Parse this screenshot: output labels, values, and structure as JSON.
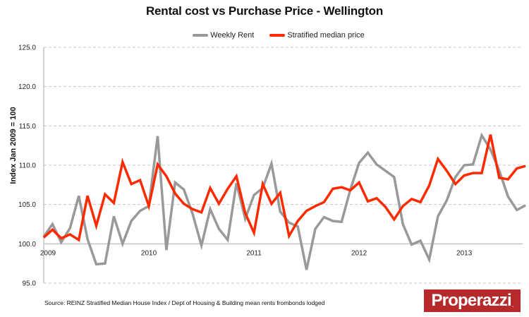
{
  "chart_data": {
    "type": "line",
    "title": "Rental cost vs Purchase Price - Wellington",
    "xlabel": "",
    "ylabel": "Index Jan 2009 = 100",
    "ylim": [
      95,
      125
    ],
    "yticks": [
      "95.0",
      "100.0",
      "105.0",
      "110.0",
      "115.0",
      "120.0",
      "125.0"
    ],
    "ytick_values": [
      95,
      100,
      105,
      110,
      115,
      120,
      125
    ],
    "xtick_labels": [
      "2009",
      "2010",
      "2011",
      "2012",
      "2013"
    ],
    "xtick_month_index": [
      0,
      12,
      24,
      36,
      48
    ],
    "x_unit": "month index from Jan 2009",
    "grid": "horizontal dashed",
    "legend_position": "top-center",
    "series": [
      {
        "name": "Weekly Rent",
        "color": "#999999",
        "values": [
          100.9,
          102.5,
          100.2,
          102.0,
          106.1,
          100.6,
          97.4,
          97.5,
          103.5,
          100.0,
          102.9,
          104.2,
          104.8,
          113.7,
          99.2,
          107.8,
          106.9,
          103.8,
          99.8,
          104.4,
          101.9,
          100.5,
          107.7,
          103.2,
          106.2,
          107.1,
          110.2,
          104.1,
          102.7,
          102.2,
          96.7,
          101.9,
          103.4,
          102.9,
          102.8,
          106.9,
          110.3,
          111.6,
          110.1,
          109.3,
          108.5,
          102.5,
          99.9,
          100.4,
          98.0,
          103.5,
          105.5,
          108.5,
          110.0,
          110.1,
          113.8,
          112.0,
          109.3,
          106.0,
          104.3,
          104.9
        ]
      },
      {
        "name": "Stratified median price",
        "color": "#ff2a00",
        "values": [
          100.8,
          101.8,
          100.7,
          101.2,
          100.5,
          106.1,
          102.3,
          106.3,
          105.2,
          110.4,
          107.6,
          108.1,
          104.8,
          110.1,
          108.6,
          106.4,
          105.1,
          104.4,
          104.0,
          107.1,
          105.1,
          107.0,
          108.6,
          103.9,
          101.4,
          107.6,
          105.1,
          106.5,
          101.0,
          102.9,
          104.2,
          104.8,
          105.3,
          107.0,
          107.2,
          106.8,
          107.8,
          105.4,
          105.8,
          104.7,
          103.1,
          104.8,
          105.7,
          105.3,
          107.4,
          110.8,
          109.3,
          107.6,
          108.7,
          109.0,
          109.0,
          113.9,
          108.4,
          108.2,
          109.6,
          109.9
        ]
      }
    ],
    "source_note": "Source: REINZ Stratified Median House Index / Dept of Housing & Building mean rents frombonds lodged"
  },
  "legend": {
    "items": [
      {
        "label": "Weekly Rent",
        "color": "#999999"
      },
      {
        "label": "Stratified median price",
        "color": "#ff2a00"
      }
    ]
  },
  "logo": {
    "text": "Properazzi",
    "dot": ".",
    "color": "#b72a2c"
  }
}
